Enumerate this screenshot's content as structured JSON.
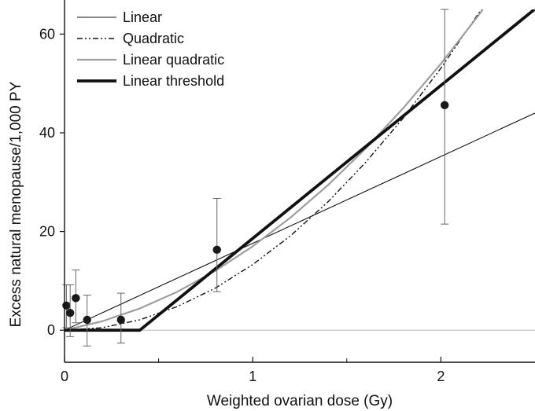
{
  "chart_data": {
    "type": "line",
    "title": "",
    "xlabel": "Weighted ovarian dose (Gy)",
    "ylabel": "Excess natural menopause/1,000 PY",
    "xlim": [
      0,
      2.5
    ],
    "ylim": [
      -6.5,
      65
    ],
    "x_ticks": [
      0,
      1,
      2
    ],
    "x_minor_ticks": [
      0.5,
      1.5
    ],
    "y_ticks": [
      0,
      20,
      40,
      60
    ],
    "grid": false,
    "legend_position": "top-left",
    "reference_line": {
      "y": 0,
      "color": "#bdbdbd"
    },
    "series": [
      {
        "name": "Linear",
        "style": "thin-solid",
        "color": "#111111",
        "x": [
          0,
          0.5,
          1.0,
          1.5,
          2.0,
          2.5
        ],
        "y": [
          0,
          8.8,
          17.6,
          26.4,
          35.2,
          44.0
        ]
      },
      {
        "name": "Quadratic",
        "style": "dash-dot",
        "color": "#111111",
        "x": [
          0,
          0.2,
          0.4,
          0.6,
          0.8,
          1.0,
          1.2,
          1.4,
          1.6,
          1.8,
          2.0,
          2.2,
          2.24
        ],
        "y": [
          0,
          0.5,
          2.1,
          4.8,
          8.5,
          13.3,
          19.1,
          26.0,
          34.0,
          43.0,
          53.1,
          64.2,
          66.6
        ]
      },
      {
        "name": "Linear quadratic",
        "style": "gray-solid",
        "color": "#9e9e9e",
        "x": [
          0,
          0.2,
          0.4,
          0.6,
          0.8,
          1.0,
          1.2,
          1.4,
          1.6,
          1.8,
          2.0,
          2.2,
          2.4,
          2.5
        ],
        "y": [
          0,
          1.8,
          4.4,
          7.8,
          12.0,
          17.0,
          22.8,
          29.4,
          36.8,
          45.0,
          54.0,
          63.8,
          74.4,
          80.0
        ]
      },
      {
        "name": "Linear threshold",
        "style": "thick-solid",
        "color": "#111111",
        "x": [
          0,
          0.4,
          2.5
        ],
        "y": [
          0,
          0,
          65.1
        ]
      }
    ],
    "points": [
      {
        "x": 0.01,
        "y": 5.0,
        "lo": 0.5,
        "hi": 9.2
      },
      {
        "x": 0.03,
        "y": 3.5,
        "lo": -1.3,
        "hi": 9.2
      },
      {
        "x": 0.06,
        "y": 6.5,
        "lo": 1.5,
        "hi": 12.2
      },
      {
        "x": 0.12,
        "y": 2.1,
        "lo": -3.2,
        "hi": 7.1
      },
      {
        "x": 0.3,
        "y": 2.1,
        "lo": -2.6,
        "hi": 7.5
      },
      {
        "x": 0.81,
        "y": 16.3,
        "lo": 7.8,
        "hi": 26.7
      },
      {
        "x": 2.02,
        "y": 45.6,
        "lo": 21.5,
        "hi": 65.0
      }
    ]
  }
}
